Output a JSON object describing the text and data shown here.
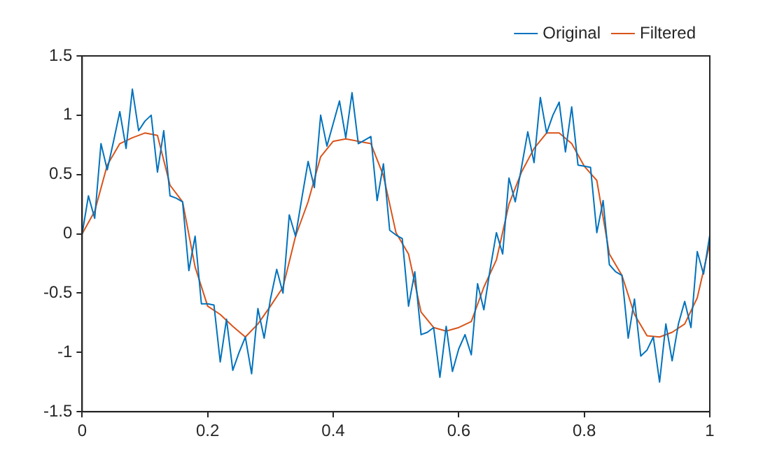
{
  "chart_data": {
    "type": "line",
    "xlim": [
      0,
      1
    ],
    "ylim": [
      -1.5,
      1.5
    ],
    "xticks": [
      0,
      0.2,
      0.4,
      0.6,
      0.8,
      1
    ],
    "yticks": [
      -1.5,
      -1,
      -0.5,
      0,
      0.5,
      1,
      1.5
    ],
    "grid": false,
    "legend": "top right",
    "marker": "none",
    "line_style": "solid",
    "series": [
      {
        "name": "Original",
        "color": "#0072bd",
        "x": [
          0,
          0.01,
          0.02,
          0.03,
          0.04,
          0.05,
          0.06,
          0.07,
          0.08,
          0.09,
          0.1,
          0.11,
          0.12,
          0.13,
          0.14,
          0.15,
          0.16,
          0.17,
          0.18,
          0.19,
          0.2,
          0.21,
          0.22,
          0.23,
          0.24,
          0.25,
          0.26,
          0.27,
          0.28,
          0.29,
          0.3,
          0.31,
          0.32,
          0.33,
          0.34,
          0.35,
          0.36,
          0.37,
          0.38,
          0.39,
          0.4,
          0.41,
          0.42,
          0.43,
          0.44,
          0.45,
          0.46,
          0.47,
          0.48,
          0.49,
          0.5,
          0.51,
          0.52,
          0.53,
          0.54,
          0.55,
          0.56,
          0.57,
          0.58,
          0.59,
          0.6,
          0.61,
          0.62,
          0.63,
          0.64,
          0.65,
          0.66,
          0.67,
          0.68,
          0.69,
          0.7,
          0.71,
          0.72,
          0.73,
          0.74,
          0.75,
          0.76,
          0.77,
          0.78,
          0.79,
          0.8,
          0.81,
          0.82,
          0.83,
          0.84,
          0.85,
          0.86,
          0.87,
          0.88,
          0.89,
          0.9,
          0.91,
          0.92,
          0.93,
          0.94,
          0.95,
          0.96,
          0.97,
          0.98,
          0.99,
          1
        ],
        "values": [
          0,
          0.32,
          0.13,
          0.76,
          0.54,
          0.78,
          1.03,
          0.72,
          1.22,
          0.87,
          0.95,
          1.0,
          0.52,
          0.87,
          0.32,
          0.3,
          0.27,
          -0.31,
          -0.02,
          -0.59,
          -0.59,
          -0.6,
          -1.08,
          -0.72,
          -1.15,
          -1.0,
          -0.87,
          -1.18,
          -0.63,
          -0.88,
          -0.55,
          -0.3,
          -0.5,
          0.16,
          -0.02,
          0.3,
          0.61,
          0.39,
          1.0,
          0.74,
          0.93,
          1.12,
          0.81,
          1.19,
          0.76,
          0.79,
          0.82,
          0.28,
          0.59,
          0.03,
          -0.01,
          -0.04,
          -0.61,
          -0.32,
          -0.85,
          -0.83,
          -0.79,
          -1.21,
          -0.78,
          -1.16,
          -0.97,
          -0.85,
          -1.02,
          -0.42,
          -0.64,
          -0.3,
          0.01,
          -0.17,
          0.47,
          0.27,
          0.56,
          0.86,
          0.6,
          1.15,
          0.85,
          1.0,
          1.11,
          0.69,
          1.07,
          0.58,
          0.57,
          0.56,
          0.01,
          0.28,
          -0.26,
          -0.32,
          -0.35,
          -0.88,
          -0.55,
          -1.03,
          -0.98,
          -0.87,
          -1.25,
          -0.76,
          -1.07,
          -0.76,
          -0.57,
          -0.79,
          -0.15,
          -0.34,
          -0.01
        ]
      },
      {
        "name": "Filtered",
        "color": "#d95319",
        "x": [
          0,
          0.02,
          0.04,
          0.06,
          0.08,
          0.1,
          0.12,
          0.14,
          0.16,
          0.18,
          0.2,
          0.22,
          0.24,
          0.26,
          0.28,
          0.3,
          0.32,
          0.34,
          0.36,
          0.38,
          0.4,
          0.42,
          0.44,
          0.46,
          0.48,
          0.5,
          0.52,
          0.54,
          0.56,
          0.58,
          0.6,
          0.62,
          0.64,
          0.66,
          0.68,
          0.7,
          0.72,
          0.74,
          0.76,
          0.78,
          0.8,
          0.82,
          0.84,
          0.86,
          0.88,
          0.9,
          0.92,
          0.94,
          0.96,
          0.98,
          1
        ],
        "values": [
          0,
          0.19,
          0.58,
          0.76,
          0.81,
          0.85,
          0.83,
          0.41,
          0.27,
          -0.28,
          -0.61,
          -0.68,
          -0.78,
          -0.87,
          -0.76,
          -0.61,
          -0.45,
          -0.02,
          0.27,
          0.65,
          0.78,
          0.8,
          0.78,
          0.76,
          0.49,
          0.01,
          -0.17,
          -0.66,
          -0.79,
          -0.82,
          -0.79,
          -0.74,
          -0.45,
          -0.22,
          0.25,
          0.52,
          0.72,
          0.85,
          0.85,
          0.76,
          0.57,
          0.45,
          -0.17,
          -0.35,
          -0.68,
          -0.86,
          -0.87,
          -0.83,
          -0.76,
          -0.54,
          -0.08
        ]
      }
    ]
  }
}
